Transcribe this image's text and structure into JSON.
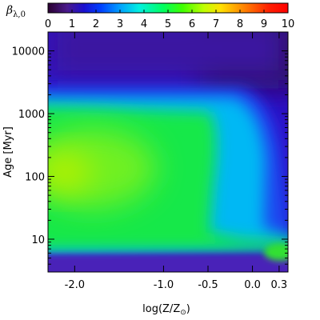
{
  "chart_data": {
    "type": "heatmap",
    "colorbar": {
      "label_main": "β",
      "label_sub": "λ,0",
      "ticks": [
        0,
        1,
        2,
        3,
        4,
        5,
        6,
        7,
        8,
        9,
        10
      ],
      "tick_labels": [
        "0",
        "1",
        "2",
        "3",
        "4",
        "5",
        "6",
        "7",
        "8",
        "9",
        "10"
      ],
      "range": [
        0,
        10
      ],
      "colormap": "rainbow (black-purple-blue-cyan-green-yellow-orange-red)"
    },
    "x_axis": {
      "label_main": "log(Z/Z",
      "label_sub": "⊙",
      "label_end": ")",
      "range": [
        -2.3,
        0.4
      ],
      "scale": "linear",
      "ticks": [
        -2.0,
        -1.0,
        -0.5,
        0.0,
        0.3
      ],
      "tick_labels": [
        "-2.0",
        "-1.0",
        "-0.5",
        "0.0",
        "0.3"
      ]
    },
    "y_axis": {
      "label": "Age [Myr]",
      "range": [
        3,
        20000
      ],
      "scale": "log",
      "ticks": [
        10,
        100,
        1000,
        10000
      ],
      "tick_labels": [
        "10",
        "100",
        "1000",
        "10000"
      ]
    },
    "grid": false,
    "value_regions": [
      {
        "log_z": -2.0,
        "age_myr": 150,
        "beta": 5.6
      },
      {
        "log_z": -1.0,
        "age_myr": 100,
        "beta": 4.5
      },
      {
        "log_z": -0.5,
        "age_myr": 30,
        "beta": 4.0
      },
      {
        "log_z": 0.3,
        "age_myr": 6,
        "beta": 4.8
      },
      {
        "log_z": -1.0,
        "age_myr": 3000,
        "beta": 1.5
      },
      {
        "log_z": 0.3,
        "age_myr": 15000,
        "beta": 0.3
      }
    ]
  }
}
